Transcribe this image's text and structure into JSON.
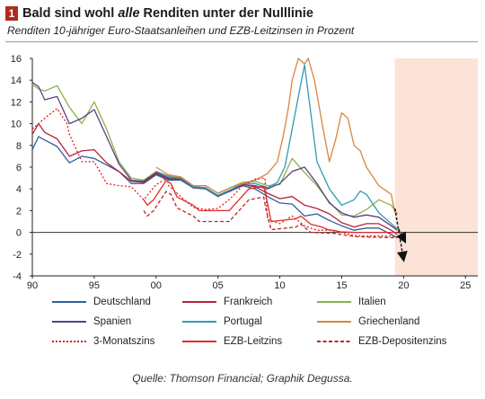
{
  "header": {
    "badge": "1",
    "title_pre": "Bald sind wohl ",
    "title_em": "alle",
    "title_post": " Renditen unter der Nulllinie",
    "subtitle": "Renditen 10-jähriger Euro-Staatsanleihen und EZB-Leitzinsen in Prozent"
  },
  "source": "Quelle: Thomson Financial; Graphik Degussa.",
  "colors": {
    "Deutschland": "#2e5f99",
    "Frankreich": "#b5243a",
    "Italien": "#8cb14a",
    "Spanien": "#5a3f86",
    "Portugal": "#2f9bb5",
    "Griechenland": "#d9863b",
    "3-Monatszins": "#d92020",
    "EZB-Leitzins": "#e02a2a",
    "EZB-Depositenzins": "#c42020",
    "forecast": "#fbe3d8",
    "arrow": "#111111"
  },
  "chart_data": {
    "type": "line",
    "xlim": [
      1990,
      2026
    ],
    "ylim": [
      -4,
      16
    ],
    "x_ticks": [
      1990,
      1995,
      2000,
      2005,
      2010,
      2015,
      2020,
      2025
    ],
    "x_tick_labels": [
      "90",
      "95",
      "00",
      "05",
      "10",
      "15",
      "20",
      "25"
    ],
    "y_ticks": [
      -4,
      -2,
      0,
      2,
      4,
      6,
      8,
      10,
      12,
      14,
      16
    ],
    "zero_line": true,
    "forecast_region": [
      2019.3,
      2026
    ],
    "arrows": [
      [
        2019.3,
        2.2,
        2020.0,
        -2.5
      ],
      [
        2019.6,
        0.3,
        2020.1,
        -0.8
      ]
    ],
    "series": [
      {
        "name": "Deutschland",
        "style": "solid",
        "x": [
          1990,
          1990.5,
          1991,
          1992,
          1993,
          1994,
          1995,
          1996,
          1997,
          1998,
          1999,
          2000,
          2001,
          2002,
          2003,
          2004,
          2005,
          2006,
          2007,
          2008,
          2009,
          2010,
          2011,
          2012,
          2013,
          2014,
          2015,
          2016,
          2017,
          2018,
          2019,
          2019.5
        ],
        "y": [
          7.6,
          8.8,
          8.5,
          7.9,
          6.4,
          7.0,
          6.8,
          6.2,
          5.6,
          4.5,
          4.5,
          5.3,
          4.8,
          4.8,
          4.1,
          4.0,
          3.3,
          3.8,
          4.3,
          4.0,
          3.3,
          2.7,
          2.6,
          1.5,
          1.7,
          1.1,
          0.6,
          0.2,
          0.4,
          0.4,
          -0.2,
          -0.5
        ]
      },
      {
        "name": "Frankreich",
        "style": "solid",
        "x": [
          1990,
          1990.5,
          1991,
          1992,
          1993,
          1994,
          1995,
          1996,
          1997,
          1998,
          1999,
          2000,
          2001,
          2002,
          2003,
          2004,
          2005,
          2006,
          2007,
          2008,
          2009,
          2010,
          2011,
          2012,
          2013,
          2014,
          2015,
          2016,
          2017,
          2018,
          2019,
          2019.5
        ],
        "y": [
          9.0,
          10.0,
          9.2,
          8.6,
          7.0,
          7.5,
          7.6,
          6.4,
          5.6,
          4.7,
          4.6,
          5.4,
          4.9,
          4.9,
          4.2,
          4.1,
          3.4,
          3.9,
          4.4,
          4.2,
          3.6,
          3.1,
          3.3,
          2.5,
          2.2,
          1.7,
          0.9,
          0.5,
          0.8,
          0.8,
          0.2,
          -0.2
        ]
      },
      {
        "name": "Italien",
        "style": "solid",
        "x": [
          1990,
          1990.5,
          1991,
          1992,
          1993,
          1994,
          1995,
          1996,
          1997,
          1998,
          1999,
          2000,
          2001,
          2002,
          2003,
          2004,
          2005,
          2006,
          2007,
          2008,
          2009,
          2010,
          2011,
          2012,
          2013,
          2014,
          2015,
          2016,
          2017,
          2018,
          2019,
          2019.5
        ],
        "y": [
          13.6,
          13.2,
          13.0,
          13.5,
          11.5,
          10.0,
          12.0,
          9.5,
          6.5,
          5.0,
          4.8,
          5.6,
          5.2,
          5.1,
          4.3,
          4.3,
          3.6,
          4.1,
          4.6,
          4.7,
          4.3,
          4.4,
          6.8,
          5.5,
          4.3,
          2.8,
          1.6,
          1.5,
          2.1,
          3.0,
          2.5,
          1.7
        ]
      },
      {
        "name": "Spanien",
        "style": "solid",
        "x": [
          1990,
          1990.5,
          1991,
          1992,
          1993,
          1994,
          1995,
          1996,
          1997,
          1998,
          1999,
          2000,
          2001,
          2002,
          2003,
          2004,
          2005,
          2006,
          2007,
          2008,
          2009,
          2010,
          2011,
          2012,
          2013,
          2014,
          2015,
          2016,
          2017,
          2018,
          2019,
          2019.5
        ],
        "y": [
          13.8,
          13.4,
          12.2,
          12.5,
          10.0,
          10.5,
          11.3,
          8.8,
          6.3,
          4.8,
          4.7,
          5.5,
          5.0,
          5.0,
          4.1,
          4.1,
          3.4,
          3.8,
          4.4,
          4.3,
          4.0,
          4.5,
          5.6,
          6.0,
          4.5,
          2.7,
          1.8,
          1.4,
          1.6,
          1.4,
          0.6,
          0.2
        ]
      },
      {
        "name": "Portugal",
        "style": "solid",
        "x": [
          2000,
          2001,
          2002,
          2003,
          2004,
          2005,
          2006,
          2007,
          2008,
          2009,
          2009.8,
          2010.4,
          2011,
          2011.5,
          2012.0,
          2012.5,
          2013,
          2014,
          2015,
          2016,
          2016.5,
          2017,
          2018,
          2019,
          2019.5
        ],
        "y": [
          5.6,
          5.1,
          5.0,
          4.2,
          4.1,
          3.4,
          3.9,
          4.5,
          4.5,
          4.1,
          4.6,
          6.0,
          9.5,
          12.5,
          15.4,
          11.0,
          6.5,
          4.0,
          2.5,
          3.0,
          3.8,
          3.5,
          1.8,
          0.8,
          0.3
        ]
      },
      {
        "name": "Griechenland",
        "style": "solid",
        "x": [
          2000,
          2001,
          2002,
          2003,
          2004,
          2005,
          2006,
          2007,
          2008,
          2009,
          2009.8,
          2010.3,
          2010.7,
          2011,
          2011.5,
          2012.0,
          2012.3,
          2012.8,
          2013.5,
          2014,
          2014.5,
          2015,
          2015.5,
          2016,
          2016.5,
          2017,
          2018,
          2019,
          2019.3
        ],
        "y": [
          6.0,
          5.3,
          5.1,
          4.3,
          4.3,
          3.6,
          4.1,
          4.5,
          4.8,
          5.4,
          6.5,
          9.0,
          11.5,
          14.0,
          16.0,
          15.5,
          25.0,
          14.0,
          9.5,
          6.5,
          8.5,
          11.0,
          10.5,
          8.0,
          7.5,
          6.0,
          4.3,
          3.5,
          1.8
        ]
      },
      {
        "name": "3-Monatszins",
        "style": "dotted",
        "x": [
          1990,
          1991,
          1992,
          1992.8,
          1993,
          1994,
          1995,
          1996,
          1997,
          1998,
          1999,
          2000,
          2000.9,
          2001,
          2002,
          2003,
          2004,
          2005,
          2006,
          2007,
          2008,
          2008.8,
          2009,
          2010,
          2011,
          2012,
          2013,
          2014,
          2015,
          2016,
          2017,
          2018,
          2019,
          2019.5
        ],
        "y": [
          9.5,
          10.5,
          11.4,
          10.0,
          9.0,
          6.5,
          6.5,
          4.5,
          4.3,
          4.2,
          3.0,
          4.4,
          5.0,
          4.3,
          3.3,
          2.3,
          2.1,
          2.2,
          3.1,
          4.3,
          4.9,
          5.0,
          1.2,
          0.8,
          1.5,
          0.6,
          0.2,
          0.2,
          0.0,
          -0.3,
          -0.33,
          -0.32,
          -0.35,
          -0.4
        ]
      },
      {
        "name": "EZB-Leitzins",
        "style": "solid",
        "x": [
          1999,
          1999.3,
          1999.8,
          2000.8,
          2001.2,
          2001.7,
          2003.0,
          2003.5,
          2005.9,
          2007.5,
          2008.7,
          2008.9,
          2009.3,
          2011.3,
          2011.7,
          2012.5,
          2013.4,
          2013.9,
          2014.5,
          2014.9,
          2016.2,
          2019.5
        ],
        "y": [
          3.0,
          2.5,
          3.0,
          4.75,
          4.5,
          3.25,
          2.5,
          2.0,
          2.0,
          4.0,
          4.25,
          3.25,
          1.0,
          1.25,
          1.5,
          0.75,
          0.5,
          0.25,
          0.15,
          0.05,
          0.0,
          0.0
        ]
      },
      {
        "name": "EZB-Depositenzins",
        "style": "dashed",
        "x": [
          1999,
          1999.3,
          1999.8,
          2000.8,
          2001.2,
          2001.7,
          2003.0,
          2003.5,
          2005.9,
          2007.5,
          2008.7,
          2008.9,
          2009.3,
          2011.3,
          2011.7,
          2012.5,
          2014.5,
          2014.9,
          2016.2,
          2019.5
        ],
        "y": [
          2.0,
          1.5,
          2.0,
          3.75,
          3.5,
          2.25,
          1.5,
          1.0,
          1.0,
          3.0,
          3.25,
          2.0,
          0.25,
          0.5,
          0.75,
          0.0,
          -0.1,
          -0.2,
          -0.4,
          -0.5
        ]
      }
    ]
  },
  "legend": [
    {
      "name": "Deutschland",
      "style": "solid"
    },
    {
      "name": "Frankreich",
      "style": "solid"
    },
    {
      "name": "Italien",
      "style": "solid"
    },
    {
      "name": "Spanien",
      "style": "solid"
    },
    {
      "name": "Portugal",
      "style": "solid"
    },
    {
      "name": "Griechenland",
      "style": "solid"
    },
    {
      "name": "3-Monatszins",
      "style": "dotted"
    },
    {
      "name": "EZB-Leitzins",
      "style": "solid"
    },
    {
      "name": "EZB-Depositenzins",
      "style": "dashed"
    }
  ]
}
